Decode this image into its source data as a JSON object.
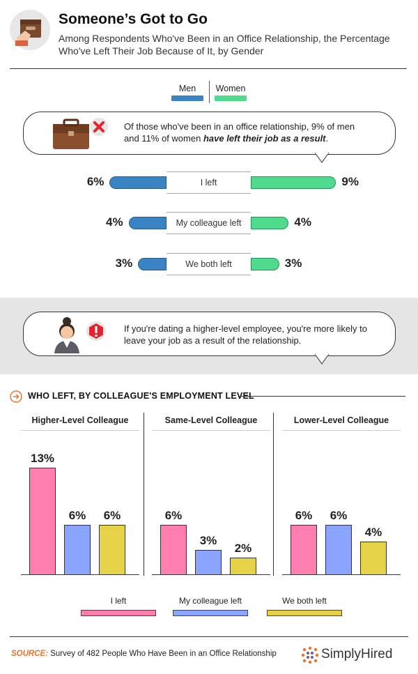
{
  "header": {
    "title": "Someone’s Got to Go",
    "subtitle": "Among Respondents Who've Been in an Office Relationship, the Percentage Who've Left Their Job Because of It, by Gender"
  },
  "legend": {
    "men_label": "Men",
    "women_label": "Women",
    "men_color": "#3a84c4",
    "women_color": "#4fdb8e"
  },
  "callout1": {
    "text_plain": "Of those who've been in an office relationship, 9% of men and 11% of women ",
    "text_emphasis": "have left their job as a result",
    "text_end": "."
  },
  "callout2": {
    "text": "If you're dating a higher-level  employee, you're more likely to leave your job as a result of the relationship."
  },
  "section": {
    "title": "WHO LEFT, BY COLLEAGUE'S EMPLOYMENT LEVEL"
  },
  "bottom_legend": {
    "items": [
      {
        "label": "I left",
        "color": "#ff7eb0"
      },
      {
        "label": "My colleague left",
        "color": "#8aa4ff"
      },
      {
        "label": "We both left",
        "color": "#e6d246"
      }
    ]
  },
  "footer": {
    "source_label": "SOURCE:",
    "source_text": " Survey of 482 People Who Have Been in an Office Relationship",
    "brand": "SimplyHired"
  },
  "chart_data": [
    {
      "type": "bar",
      "orientation": "horizontal-diverging",
      "categories": [
        "I left",
        "My colleague left",
        "We both left"
      ],
      "series": [
        {
          "name": "Men",
          "values": [
            6,
            4,
            3
          ],
          "labels": [
            "6%",
            "4%",
            "3%"
          ]
        },
        {
          "name": "Women",
          "values": [
            9,
            4,
            3
          ],
          "labels": [
            "9%",
            "4%",
            "3%"
          ]
        }
      ]
    },
    {
      "type": "bar",
      "title": "Higher-Level  Colleague",
      "categories": [
        "I left",
        "My colleague left",
        "We both left"
      ],
      "values": [
        13,
        6,
        6
      ],
      "labels": [
        "13%",
        "6%",
        "6%"
      ],
      "ylim": [
        0,
        15
      ]
    },
    {
      "type": "bar",
      "title": "Same-Level Colleague",
      "categories": [
        "I left",
        "My colleague left",
        "We both left"
      ],
      "values": [
        6,
        3,
        2
      ],
      "labels": [
        "6%",
        "3%",
        "2%"
      ],
      "ylim": [
        0,
        15
      ]
    },
    {
      "type": "bar",
      "title": "Lower-Level Colleague",
      "categories": [
        "I left",
        "My colleague left",
        "We both left"
      ],
      "values": [
        6,
        6,
        4
      ],
      "labels": [
        "6%",
        "6%",
        "4%"
      ],
      "ylim": [
        0,
        15
      ]
    }
  ]
}
